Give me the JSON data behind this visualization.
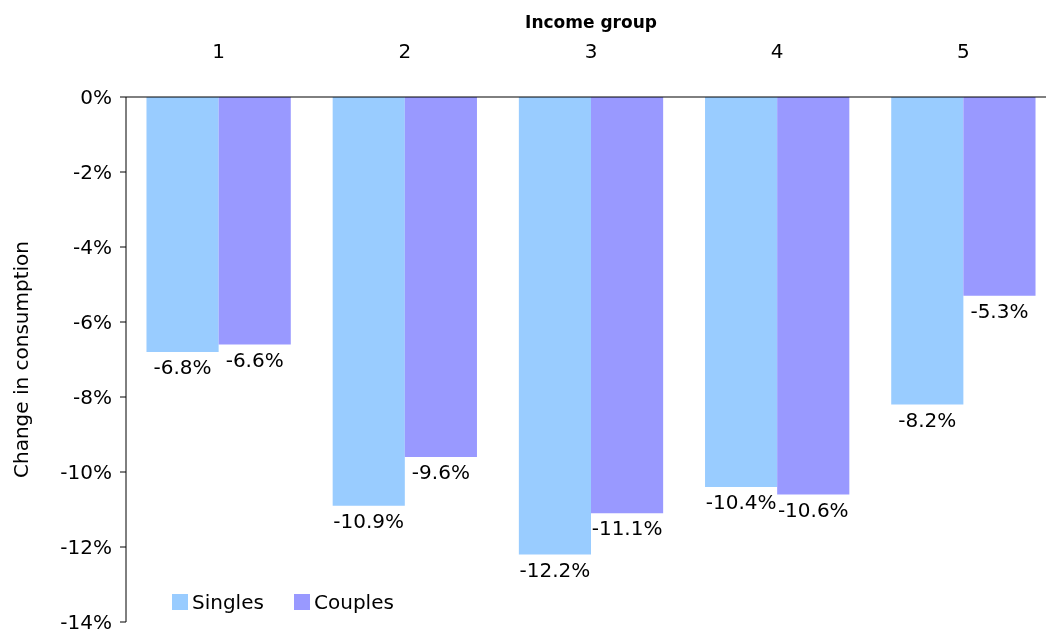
{
  "chart_data": {
    "type": "bar",
    "xlabel": "Income group",
    "ylabel": "Change in consumption",
    "categories": [
      "1",
      "2",
      "3",
      "4",
      "5"
    ],
    "series": [
      {
        "name": "Singles",
        "color": "#99ccff",
        "values": [
          -6.8,
          -10.9,
          -12.2,
          -10.4,
          -8.2
        ],
        "value_labels": [
          "-6.8%",
          "-10.9%",
          "-12.2%",
          "-10.4%",
          "-8.2%"
        ]
      },
      {
        "name": "Couples",
        "color": "#9999ff",
        "values": [
          -6.6,
          -9.6,
          -11.1,
          -10.6,
          -5.3
        ],
        "value_labels": [
          "-6.6%",
          "-9.6%",
          "-11.1%",
          "-10.6%",
          "-5.3%"
        ]
      }
    ],
    "ylim": [
      -14,
      0
    ],
    "yticks": [
      {
        "value": 0,
        "label": "0%"
      },
      {
        "value": -2,
        "label": "-2%"
      },
      {
        "value": -4,
        "label": "-4%"
      },
      {
        "value": -6,
        "label": "-6%"
      },
      {
        "value": -8,
        "label": "-8%"
      },
      {
        "value": -10,
        "label": "-10%"
      },
      {
        "value": -12,
        "label": "-12%"
      },
      {
        "value": -14,
        "label": "-14%"
      }
    ],
    "grid": false,
    "legend": "bottom left"
  }
}
